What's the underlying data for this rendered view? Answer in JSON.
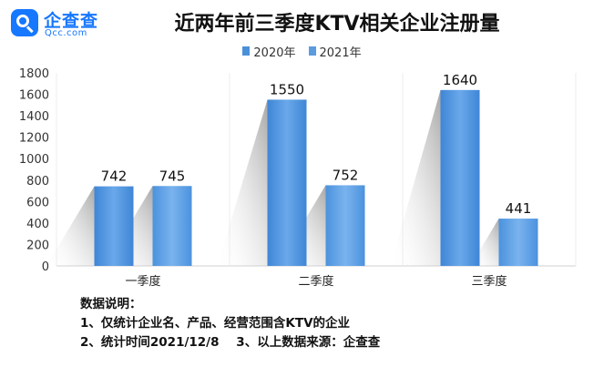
{
  "logo": {
    "name": "企查查",
    "domain": "Qcc.com",
    "brand_color": "#1677ff"
  },
  "chart_data": {
    "type": "bar",
    "title": "近两年前三季度KTV相关企业注册量",
    "categories": [
      "一季度",
      "二季度",
      "三季度"
    ],
    "series": [
      {
        "name": "2020年",
        "values": [
          742,
          1550,
          1640
        ],
        "color": "#4a90d9"
      },
      {
        "name": "2021年",
        "values": [
          745,
          752,
          441
        ],
        "color": "#5b9be0"
      }
    ],
    "ylim": [
      0,
      1800
    ],
    "yticks": [
      0,
      200,
      400,
      600,
      800,
      1000,
      1200,
      1400,
      1600,
      1800
    ],
    "grid": false,
    "legend": "top-center",
    "xlabel": "",
    "ylabel": ""
  },
  "notes": {
    "heading": "数据说明：",
    "line1": "1、仅统计企业名、产品、经营范围含KTV的企业",
    "line2": "2、统计时间2021/12/8    3、以上数据来源：企查查"
  }
}
